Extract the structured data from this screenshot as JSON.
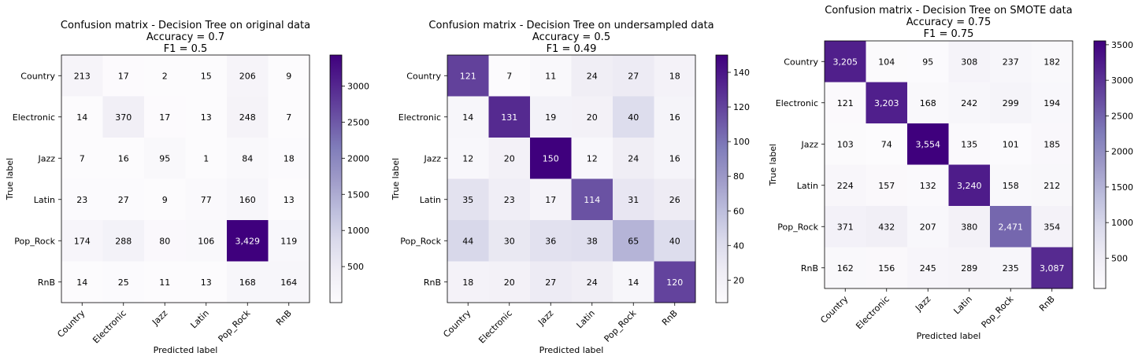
{
  "chart_data": [
    {
      "type": "heatmap",
      "title": [
        "Confusion matrix - Decision Tree on original data",
        "Accuracy = 0.7",
        "F1 = 0.5"
      ],
      "xlabel": "Predicted label",
      "ylabel": "True label",
      "categories": [
        "Country",
        "Electronic",
        "Jazz",
        "Latin",
        "Pop_Rock",
        "RnB"
      ],
      "values": [
        [
          213,
          17,
          2,
          15,
          206,
          9
        ],
        [
          14,
          370,
          17,
          13,
          248,
          7
        ],
        [
          7,
          16,
          95,
          1,
          84,
          18
        ],
        [
          23,
          27,
          9,
          77,
          160,
          13
        ],
        [
          174,
          288,
          80,
          106,
          3429,
          119
        ],
        [
          14,
          25,
          11,
          13,
          168,
          164
        ]
      ],
      "labels": [
        [
          "213",
          "17",
          "2",
          "15",
          "206",
          "9"
        ],
        [
          "14",
          "370",
          "17",
          "13",
          "248",
          "7"
        ],
        [
          "7",
          "16",
          "95",
          "1",
          "84",
          "18"
        ],
        [
          "23",
          "27",
          "9",
          "77",
          "160",
          "13"
        ],
        [
          "174",
          "288",
          "80",
          "106",
          "3,429",
          "119"
        ],
        [
          "14",
          "25",
          "11",
          "13",
          "168",
          "164"
        ]
      ],
      "colorbar": {
        "range": [
          1,
          3429
        ],
        "ticks": [
          500,
          1000,
          1500,
          2000,
          2500,
          3000
        ]
      },
      "colormap": "Purples"
    },
    {
      "type": "heatmap",
      "title": [
        "Confusion matrix - Decision Tree on undersampled data",
        "Accuracy = 0.5",
        "F1 = 0.49"
      ],
      "xlabel": "Predicted label",
      "ylabel": "True label",
      "categories": [
        "Country",
        "Electronic",
        "Jazz",
        "Latin",
        "Pop_Rock",
        "RnB"
      ],
      "values": [
        [
          121,
          7,
          11,
          24,
          27,
          18
        ],
        [
          14,
          131,
          19,
          20,
          40,
          16
        ],
        [
          12,
          20,
          150,
          12,
          24,
          16
        ],
        [
          35,
          23,
          17,
          114,
          31,
          26
        ],
        [
          44,
          30,
          36,
          38,
          65,
          40
        ],
        [
          18,
          20,
          27,
          24,
          14,
          120
        ]
      ],
      "labels": [
        [
          "121",
          "7",
          "11",
          "24",
          "27",
          "18"
        ],
        [
          "14",
          "131",
          "19",
          "20",
          "40",
          "16"
        ],
        [
          "12",
          "20",
          "150",
          "12",
          "24",
          "16"
        ],
        [
          "35",
          "23",
          "17",
          "114",
          "31",
          "26"
        ],
        [
          "44",
          "30",
          "36",
          "38",
          "65",
          "40"
        ],
        [
          "18",
          "20",
          "27",
          "24",
          "14",
          "120"
        ]
      ],
      "colorbar": {
        "range": [
          7,
          150
        ],
        "ticks": [
          20,
          40,
          60,
          80,
          100,
          120,
          140
        ]
      },
      "colormap": "Purples"
    },
    {
      "type": "heatmap",
      "title": [
        "Confusion matrix - Decision Tree on SMOTE data",
        "Accuracy = 0.75",
        "F1 = 0.75"
      ],
      "xlabel": "Predicted label",
      "ylabel": "True label",
      "categories": [
        "Country",
        "Electronic",
        "Jazz",
        "Latin",
        "Pop_Rock",
        "RnB"
      ],
      "values": [
        [
          3205,
          104,
          95,
          308,
          237,
          182
        ],
        [
          121,
          3203,
          168,
          242,
          299,
          194
        ],
        [
          103,
          74,
          3554,
          135,
          101,
          185
        ],
        [
          224,
          157,
          132,
          3240,
          158,
          212
        ],
        [
          371,
          432,
          207,
          380,
          2471,
          354
        ],
        [
          162,
          156,
          245,
          289,
          235,
          3087
        ]
      ],
      "labels": [
        [
          "3,205",
          "104",
          "95",
          "308",
          "237",
          "182"
        ],
        [
          "121",
          "3,203",
          "168",
          "242",
          "299",
          "194"
        ],
        [
          "103",
          "74",
          "3,554",
          "135",
          "101",
          "185"
        ],
        [
          "224",
          "157",
          "132",
          "3,240",
          "158",
          "212"
        ],
        [
          "371",
          "432",
          "207",
          "380",
          "2,471",
          "354"
        ],
        [
          "162",
          "156",
          "245",
          "289",
          "235",
          "3,087"
        ]
      ],
      "colorbar": {
        "range": [
          74,
          3554
        ],
        "ticks": [
          500,
          1000,
          1500,
          2000,
          2500,
          3000,
          3500
        ]
      },
      "colormap": "Purples"
    }
  ]
}
